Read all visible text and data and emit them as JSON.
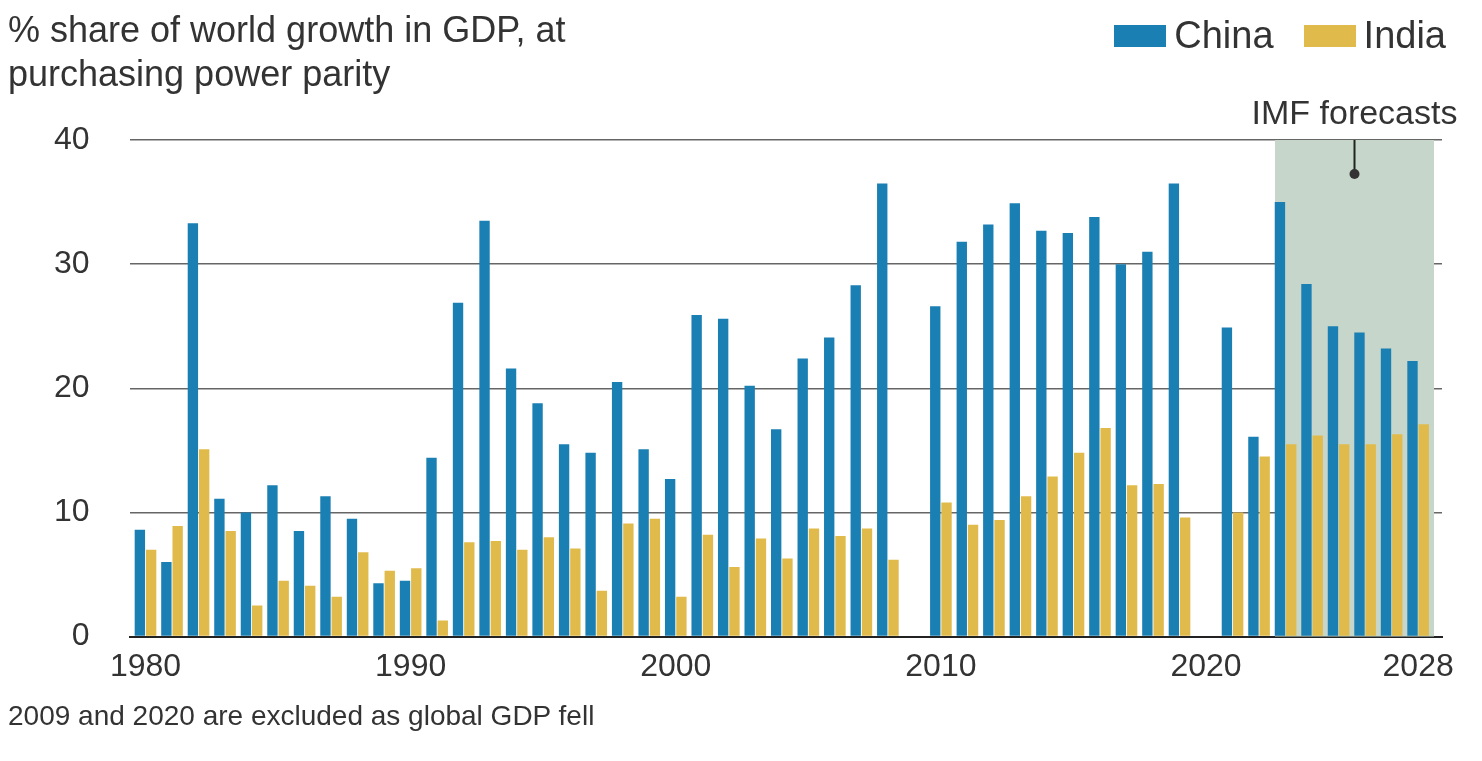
{
  "chart_data": {
    "type": "bar",
    "title": "% share of world growth in GDP, at purchasing power parity",
    "annotations": [
      "2009 and 2020 are excluded as global GDP fell"
    ],
    "x": [
      1980,
      1981,
      1982,
      1983,
      1984,
      1985,
      1986,
      1987,
      1988,
      1989,
      1990,
      1991,
      1992,
      1993,
      1994,
      1995,
      1996,
      1997,
      1998,
      1999,
      2000,
      2001,
      2002,
      2003,
      2004,
      2005,
      2006,
      2007,
      2008,
      2009,
      2010,
      2011,
      2012,
      2013,
      2014,
      2015,
      2016,
      2017,
      2018,
      2019,
      2020,
      2021,
      2022,
      2023,
      2024,
      2025,
      2026,
      2027,
      2028
    ],
    "series": [
      {
        "name": "China",
        "color": "#1a7fb3",
        "values": [
          8.6,
          6.0,
          33.3,
          11.1,
          10.0,
          12.2,
          8.5,
          11.3,
          9.5,
          4.3,
          4.5,
          14.4,
          26.9,
          33.5,
          21.6,
          18.8,
          15.5,
          14.8,
          20.5,
          15.1,
          12.7,
          25.9,
          25.6,
          20.2,
          16.7,
          22.4,
          24.1,
          28.3,
          36.5,
          null,
          26.6,
          31.8,
          33.2,
          34.9,
          32.7,
          32.5,
          33.8,
          30.0,
          31.0,
          36.5,
          null,
          24.9,
          16.1,
          35.0,
          28.4,
          25.0,
          24.5,
          23.2,
          22.2
        ]
      },
      {
        "name": "India",
        "color": "#e0bb4b",
        "values": [
          7.0,
          8.9,
          15.1,
          8.5,
          2.5,
          4.5,
          4.1,
          3.2,
          6.8,
          5.3,
          5.5,
          1.3,
          7.6,
          7.7,
          7.0,
          8.0,
          7.1,
          3.7,
          9.1,
          9.5,
          3.2,
          8.2,
          5.6,
          7.9,
          6.3,
          8.7,
          8.1,
          8.7,
          6.2,
          null,
          10.8,
          9.0,
          9.4,
          11.3,
          12.9,
          14.8,
          16.8,
          12.2,
          12.3,
          9.6,
          null,
          10.0,
          14.5,
          15.5,
          16.2,
          15.5,
          15.5,
          16.3,
          17.1
        ]
      }
    ],
    "xlim": [
      1979.4,
      2028.9
    ],
    "xticks": [
      1980,
      1990,
      2000,
      2010,
      2020,
      2028
    ],
    "ylim": [
      0,
      40
    ],
    "yticks": [
      0,
      10,
      20,
      30,
      40
    ],
    "grid": "y",
    "legend": "top right",
    "bands": [
      {
        "axis": "x",
        "from": 2022.6,
        "to": 2028.6,
        "label": "IMF forecasts",
        "color": "#c6d6ca"
      }
    ]
  }
}
